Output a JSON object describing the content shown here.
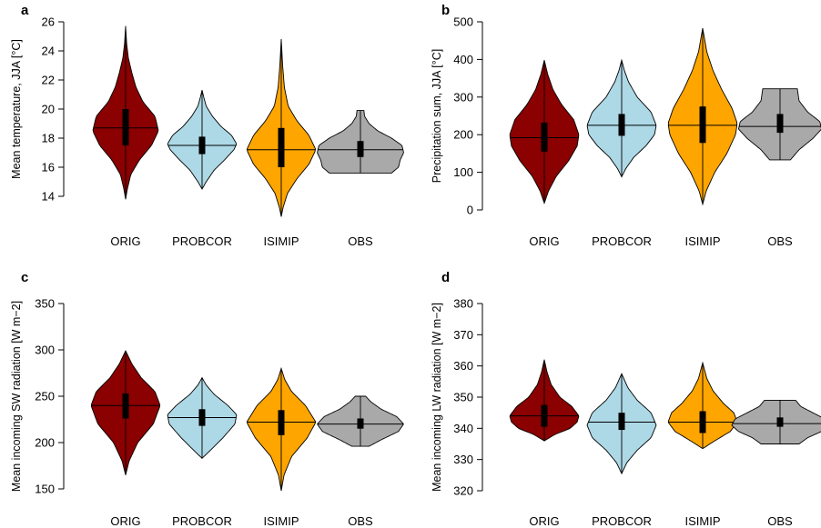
{
  "colors": {
    "ORIG": "#8b0000",
    "PROBCOR": "#add8e6",
    "ISIMIP": "#ffa500",
    "OBS": "#a9a9a9"
  },
  "chart_data": [
    {
      "panel": "a",
      "type": "violin",
      "ylabel": "Mean temperature, JJA [°C]",
      "ylim": [
        14,
        26
      ],
      "yticks": [
        14,
        16,
        18,
        20,
        22,
        24,
        26
      ],
      "categories": [
        "ORIG",
        "PROBCOR",
        "ISIMIP",
        "OBS"
      ],
      "series": [
        {
          "category": "ORIG",
          "min": 13.8,
          "max": 25.7,
          "q1": 17.5,
          "median": 18.7,
          "q3": 20.0,
          "whisker_low": 15.5,
          "whisker_high": 22.5,
          "profile": [
            [
              13.8,
              0
            ],
            [
              14.5,
              0.05
            ],
            [
              15.5,
              0.15
            ],
            [
              16.5,
              0.4
            ],
            [
              17.5,
              0.75
            ],
            [
              18.5,
              0.95
            ],
            [
              19.5,
              0.85
            ],
            [
              20.5,
              0.5
            ],
            [
              21.5,
              0.3
            ],
            [
              22.5,
              0.18
            ],
            [
              23.5,
              0.08
            ],
            [
              24.5,
              0.03
            ],
            [
              25.7,
              0
            ]
          ]
        },
        {
          "category": "PROBCOR",
          "min": 14.5,
          "max": 21.3,
          "q1": 16.9,
          "median": 17.5,
          "q3": 18.1,
          "whisker_low": 16.0,
          "whisker_high": 19.2,
          "profile": [
            [
              14.5,
              0
            ],
            [
              15.0,
              0.12
            ],
            [
              15.8,
              0.35
            ],
            [
              16.5,
              0.65
            ],
            [
              17.2,
              0.92
            ],
            [
              17.6,
              1.0
            ],
            [
              18.2,
              0.85
            ],
            [
              18.8,
              0.55
            ],
            [
              19.5,
              0.3
            ],
            [
              20.2,
              0.12
            ],
            [
              20.8,
              0.05
            ],
            [
              21.3,
              0
            ]
          ]
        },
        {
          "category": "ISIMIP",
          "min": 12.6,
          "max": 24.8,
          "q1": 16.0,
          "median": 17.2,
          "q3": 18.7,
          "whisker_low": 13.5,
          "whisker_high": 23.0,
          "profile": [
            [
              12.6,
              0
            ],
            [
              13.2,
              0.05
            ],
            [
              14.2,
              0.18
            ],
            [
              15.2,
              0.45
            ],
            [
              16.2,
              0.8
            ],
            [
              17.2,
              1.0
            ],
            [
              18.2,
              0.8
            ],
            [
              19.2,
              0.45
            ],
            [
              20.2,
              0.2
            ],
            [
              21.5,
              0.09
            ],
            [
              23.0,
              0.04
            ],
            [
              24.8,
              0
            ]
          ]
        },
        {
          "category": "OBS",
          "min": 15.6,
          "max": 19.9,
          "q1": 16.7,
          "median": 17.2,
          "q3": 17.8,
          "whisker_low": 16.0,
          "whisker_high": 19.0,
          "profile": [
            [
              15.6,
              0.9
            ],
            [
              16.0,
              1.1
            ],
            [
              16.5,
              1.15
            ],
            [
              17.0,
              1.25
            ],
            [
              17.5,
              1.2
            ],
            [
              18.0,
              0.9
            ],
            [
              18.5,
              0.5
            ],
            [
              19.0,
              0.25
            ],
            [
              19.5,
              0.12
            ],
            [
              19.9,
              0.1
            ]
          ]
        }
      ]
    },
    {
      "panel": "b",
      "type": "violin",
      "ylabel": "Precipitation sum, JJA [°C]",
      "ylim": [
        0,
        500
      ],
      "yticks": [
        0,
        100,
        200,
        300,
        400,
        500
      ],
      "categories": [
        "ORIG",
        "PROBCOR",
        "ISIMIP",
        "OBS"
      ],
      "series": [
        {
          "category": "ORIG",
          "min": 18,
          "max": 398,
          "q1": 155,
          "median": 192,
          "q3": 232,
          "whisker_low": 40,
          "whisker_high": 340,
          "profile": [
            [
              18,
              0
            ],
            [
              50,
              0.12
            ],
            [
              90,
              0.35
            ],
            [
              130,
              0.7
            ],
            [
              170,
              0.95
            ],
            [
              200,
              1.0
            ],
            [
              240,
              0.85
            ],
            [
              280,
              0.5
            ],
            [
              320,
              0.25
            ],
            [
              360,
              0.1
            ],
            [
              398,
              0
            ]
          ]
        },
        {
          "category": "PROBCOR",
          "min": 88,
          "max": 398,
          "q1": 197,
          "median": 225,
          "q3": 255,
          "whisker_low": 110,
          "whisker_high": 350,
          "profile": [
            [
              88,
              0
            ],
            [
              110,
              0.12
            ],
            [
              140,
              0.35
            ],
            [
              170,
              0.7
            ],
            [
              200,
              0.95
            ],
            [
              225,
              1.0
            ],
            [
              260,
              0.85
            ],
            [
              300,
              0.45
            ],
            [
              340,
              0.2
            ],
            [
              370,
              0.08
            ],
            [
              398,
              0
            ]
          ]
        },
        {
          "category": "ISIMIP",
          "min": 15,
          "max": 483,
          "q1": 178,
          "median": 225,
          "q3": 275,
          "whisker_low": 40,
          "whisker_high": 410,
          "profile": [
            [
              15,
              0
            ],
            [
              50,
              0.1
            ],
            [
              100,
              0.35
            ],
            [
              150,
              0.7
            ],
            [
              200,
              0.95
            ],
            [
              230,
              1.0
            ],
            [
              270,
              0.85
            ],
            [
              320,
              0.55
            ],
            [
              370,
              0.3
            ],
            [
              420,
              0.12
            ],
            [
              483,
              0
            ]
          ]
        },
        {
          "category": "OBS",
          "min": 133,
          "max": 322,
          "q1": 205,
          "median": 222,
          "q3": 255,
          "whisker_low": 160,
          "whisker_high": 300,
          "profile": [
            [
              133,
              0.3
            ],
            [
              160,
              0.55
            ],
            [
              190,
              0.95
            ],
            [
              215,
              1.2
            ],
            [
              235,
              1.15
            ],
            [
              260,
              0.8
            ],
            [
              290,
              0.55
            ],
            [
              322,
              0.5
            ]
          ]
        }
      ]
    },
    {
      "panel": "c",
      "type": "violin",
      "ylabel": "Mean incoming SW radiation [W m−2]",
      "ylim": [
        150,
        350
      ],
      "yticks": [
        150,
        200,
        250,
        300,
        350
      ],
      "categories": [
        "ORIG",
        "PROBCOR",
        "ISIMIP",
        "OBS"
      ],
      "series": [
        {
          "category": "ORIG",
          "min": 165,
          "max": 299,
          "q1": 226,
          "median": 240,
          "q3": 253,
          "whisker_low": 190,
          "whisker_high": 290,
          "profile": [
            [
              165,
              0
            ],
            [
              180,
              0.1
            ],
            [
              200,
              0.35
            ],
            [
              220,
              0.8
            ],
            [
              240,
              1.0
            ],
            [
              255,
              0.85
            ],
            [
              270,
              0.45
            ],
            [
              285,
              0.18
            ],
            [
              299,
              0
            ]
          ]
        },
        {
          "category": "PROBCOR",
          "min": 183,
          "max": 270,
          "q1": 218,
          "median": 227,
          "q3": 236,
          "whisker_low": 196,
          "whisker_high": 258,
          "profile": [
            [
              183,
              0
            ],
            [
              192,
              0.25
            ],
            [
              205,
              0.6
            ],
            [
              220,
              0.95
            ],
            [
              230,
              1.0
            ],
            [
              240,
              0.75
            ],
            [
              252,
              0.35
            ],
            [
              262,
              0.12
            ],
            [
              270,
              0
            ]
          ]
        },
        {
          "category": "ISIMIP",
          "min": 148,
          "max": 280,
          "q1": 208,
          "median": 222,
          "q3": 235,
          "whisker_low": 160,
          "whisker_high": 275,
          "profile": [
            [
              148,
              0
            ],
            [
              165,
              0.08
            ],
            [
              185,
              0.3
            ],
            [
              205,
              0.75
            ],
            [
              222,
              1.0
            ],
            [
              240,
              0.7
            ],
            [
              255,
              0.3
            ],
            [
              268,
              0.1
            ],
            [
              280,
              0
            ]
          ]
        },
        {
          "category": "OBS",
          "min": 196,
          "max": 250,
          "q1": 215,
          "median": 220,
          "q3": 226,
          "whisker_low": 200,
          "whisker_high": 240,
          "profile": [
            [
              196,
              0.25
            ],
            [
              203,
              0.6
            ],
            [
              212,
              1.1
            ],
            [
              220,
              1.25
            ],
            [
              228,
              1.05
            ],
            [
              236,
              0.6
            ],
            [
              244,
              0.3
            ],
            [
              250,
              0.15
            ]
          ]
        }
      ]
    },
    {
      "panel": "d",
      "type": "violin",
      "ylabel": "Mean incoming LW radiation [W m−2]",
      "ylim": [
        320,
        380
      ],
      "yticks": [
        320,
        330,
        340,
        350,
        360,
        370,
        380
      ],
      "categories": [
        "ORIG",
        "PROBCOR",
        "ISIMIP",
        "OBS"
      ],
      "series": [
        {
          "category": "ORIG",
          "min": 336,
          "max": 362,
          "q1": 340.5,
          "median": 344,
          "q3": 347.5,
          "whisker_low": 337,
          "whisker_high": 356,
          "profile": [
            [
              336,
              0
            ],
            [
              338,
              0.3
            ],
            [
              340,
              0.75
            ],
            [
              342,
              0.95
            ],
            [
              344,
              1.0
            ],
            [
              347,
              0.8
            ],
            [
              350,
              0.45
            ],
            [
              354,
              0.2
            ],
            [
              358,
              0.08
            ],
            [
              362,
              0
            ]
          ]
        },
        {
          "category": "PROBCOR",
          "min": 325.5,
          "max": 357.5,
          "q1": 339.5,
          "median": 342,
          "q3": 345,
          "whisker_low": 330,
          "whisker_high": 352,
          "profile": [
            [
              325.5,
              0
            ],
            [
              329,
              0.15
            ],
            [
              333,
              0.45
            ],
            [
              337,
              0.85
            ],
            [
              341,
              1.0
            ],
            [
              345,
              0.85
            ],
            [
              349,
              0.45
            ],
            [
              353,
              0.18
            ],
            [
              357.5,
              0
            ]
          ]
        },
        {
          "category": "ISIMIP",
          "min": 333.5,
          "max": 361,
          "q1": 338.5,
          "median": 342,
          "q3": 345.5,
          "whisker_low": 335,
          "whisker_high": 356,
          "profile": [
            [
              333.5,
              0
            ],
            [
              336,
              0.35
            ],
            [
              339,
              0.8
            ],
            [
              342,
              1.0
            ],
            [
              345,
              0.9
            ],
            [
              348,
              0.6
            ],
            [
              352,
              0.3
            ],
            [
              356,
              0.12
            ],
            [
              361,
              0
            ]
          ]
        },
        {
          "category": "OBS",
          "min": 335,
          "max": 349,
          "q1": 340.5,
          "median": 341.5,
          "q3": 343.5,
          "whisker_low": 337,
          "whisker_high": 347,
          "profile": [
            [
              335,
              0.55
            ],
            [
              337,
              0.8
            ],
            [
              339,
              1.2
            ],
            [
              341,
              1.4
            ],
            [
              343,
              1.3
            ],
            [
              345,
              0.95
            ],
            [
              347,
              0.6
            ],
            [
              349,
              0.45
            ]
          ]
        }
      ]
    }
  ]
}
